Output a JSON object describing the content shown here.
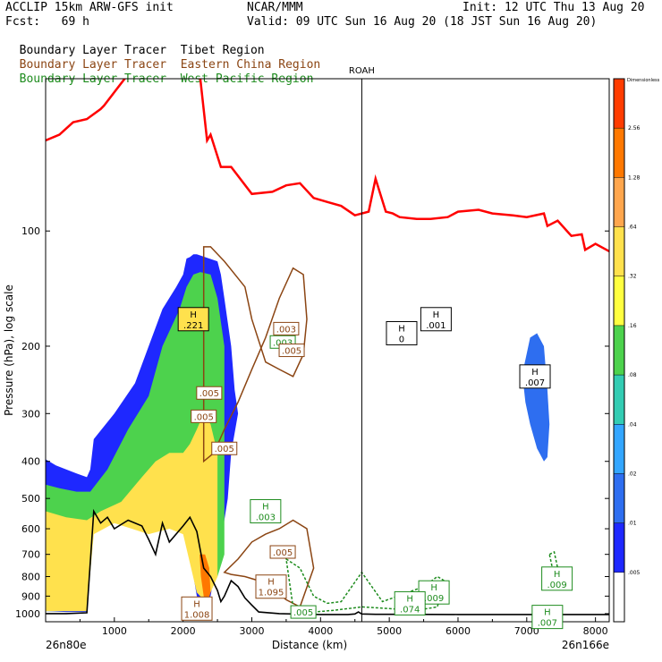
{
  "header": {
    "model": "ACCLIP 15km ARW-GFS init",
    "center": "NCAR/MMM",
    "init": "Init: 12 UTC Thu 13 Aug 20",
    "fcst": "Fcst:   69 h",
    "valid": "Valid: 09 UTC Sun 16 Aug 20 (18 JST Sun 16 Aug 20)",
    "tracers": [
      {
        "label": "Boundary Layer Tracer",
        "region": "Tibet Region",
        "color": "#000000"
      },
      {
        "label": "Boundary Layer Tracer",
        "region": "Eastern China Region",
        "color": "#8b4513"
      },
      {
        "label": "Boundary Layer Tracer",
        "region": "West Pacific Region",
        "color": "#1e8c1e"
      }
    ]
  },
  "chart_data": {
    "type": "cross-section",
    "xlabel": "Distance (km)",
    "ylabel": "Pressure (hPa), log scale",
    "xlim": [
      0,
      8200
    ],
    "ylim": [
      1050,
      40
    ],
    "x_ticks": [
      1000,
      2000,
      3000,
      4000,
      5000,
      6000,
      7000,
      8000
    ],
    "x_tick_labels": [
      "1000",
      "2000",
      "3000",
      "4000",
      "5000",
      "6000",
      "7000",
      "8000"
    ],
    "y_ticks": [
      100,
      200,
      300,
      400,
      500,
      600,
      700,
      800,
      900,
      1000
    ],
    "y_tick_labels": [
      "100",
      "200",
      "300",
      "400",
      "500",
      "600",
      "700",
      "800",
      "900",
      "1000"
    ],
    "endpoint_left": "26n80e",
    "endpoint_right": "26n166e",
    "marker": {
      "x": 4600,
      "label": "ROAH"
    },
    "colorbar": {
      "title": "Dimensionless",
      "levels": [
        "2.56",
        "1.28",
        ".64",
        ".32",
        ".16",
        ".08",
        ".04",
        ".02",
        ".01",
        ".005"
      ],
      "colors": [
        "#ff3c00",
        "#ff7800",
        "#ffa64d",
        "#ffe14d",
        "#ffff40",
        "#4dd24d",
        "#33ccb3",
        "#33a6ff",
        "#2e6ef0",
        "#1e28ff",
        "#ffffff"
      ]
    },
    "tropopause": {
      "color": "#ff0000",
      "x": [
        0,
        200,
        400,
        600,
        800,
        850,
        1150,
        1500,
        1700,
        1950,
        2150,
        2250,
        2350,
        2400,
        2550,
        2700,
        3000,
        3300,
        3500,
        3700,
        3900,
        4100,
        4300,
        4500,
        4700,
        4800,
        4950,
        5050,
        5150,
        5400,
        5600,
        5850,
        6000,
        6300,
        6500,
        6800,
        7000,
        7250,
        7300,
        7450,
        7650,
        7800,
        7850,
        8000,
        8200
      ],
      "p": [
        58,
        56,
        52,
        51,
        48,
        47,
        40,
        36,
        36,
        37,
        38,
        40,
        58,
        56,
        68,
        68,
        80,
        79,
        76,
        75,
        82,
        84,
        86,
        91,
        89,
        73,
        89,
        90,
        92,
        93,
        93,
        92,
        89,
        88,
        90,
        91,
        92,
        90,
        97,
        94,
        103,
        102,
        112,
        108,
        113
      ]
    },
    "terrain": {
      "color": "#000000",
      "x": [
        0,
        300,
        600,
        700,
        800,
        900,
        1000,
        1200,
        1400,
        1500,
        1600,
        1700,
        1800,
        2000,
        2100,
        2200,
        2300,
        2400,
        2500,
        2550,
        2600,
        2700,
        2800,
        2900,
        3000,
        3100,
        3400,
        3700,
        4000,
        4400,
        4500,
        4550,
        4600,
        4800,
        5200,
        6000,
        7000,
        8200
      ],
      "p": [
        1000,
        1000,
        995,
        540,
        580,
        560,
        600,
        570,
        590,
        640,
        700,
        580,
        650,
        590,
        560,
        610,
        760,
        800,
        870,
        930,
        900,
        820,
        850,
        910,
        950,
        990,
        1000,
        1003,
        1005,
        1005,
        1002,
        990,
        1002,
        1004,
        1004,
        1005,
        1005,
        1005
      ]
    },
    "fill_regions": [
      {
        "name": "west-fill-outer",
        "level": ".01",
        "x": [
          0,
          150,
          300,
          450,
          600,
          650,
          700,
          1000,
          1300,
          1500,
          1700,
          1900,
          2000,
          2050,
          2100,
          2150,
          2200,
          2500,
          2550,
          2600,
          2700,
          2750,
          2800,
          2700,
          2650,
          2550,
          2450,
          2400,
          2300,
          2200,
          2100,
          2000,
          1800,
          1500,
          1000,
          700,
          600,
          300,
          0
        ],
        "p": [
          395,
          410,
          420,
          430,
          440,
          420,
          350,
          300,
          250,
          200,
          160,
          140,
          130,
          118,
          117,
          115,
          115,
          120,
          130,
          150,
          200,
          260,
          300,
          380,
          500,
          650,
          800,
          900,
          950,
          900,
          700,
          600,
          580,
          600,
          560,
          600,
          990,
          990,
          985
        ]
      },
      {
        "name": "west-fill-green",
        "level": ".16",
        "x": [
          0,
          200,
          450,
          650,
          900,
          1200,
          1500,
          1700,
          1950,
          2050,
          2150,
          2250,
          2400,
          2500,
          2600,
          2600,
          2500,
          2400,
          2300,
          2200,
          2100,
          2000,
          1800,
          1500,
          1000,
          700,
          600,
          300,
          0
        ],
        "p": [
          460,
          470,
          480,
          480,
          420,
          330,
          270,
          200,
          160,
          140,
          130,
          128,
          130,
          150,
          200,
          700,
          800,
          870,
          920,
          880,
          700,
          610,
          590,
          610,
          570,
          610,
          985,
          985,
          985
        ]
      },
      {
        "name": "west-fill-orange",
        "level": ".64",
        "x": [
          0,
          300,
          600,
          800,
          1100,
          1400,
          1600,
          1800,
          2000,
          2100,
          2200,
          2300,
          2400,
          2500,
          2500,
          2400,
          2300,
          2200,
          2000,
          1800,
          1500,
          1000,
          700,
          600,
          300,
          0
        ],
        "p": [
          540,
          560,
          570,
          540,
          510,
          440,
          400,
          380,
          380,
          360,
          330,
          300,
          320,
          380,
          800,
          880,
          920,
          880,
          620,
          600,
          620,
          580,
          620,
          985,
          985,
          985
        ]
      },
      {
        "name": "west-fill-red",
        "level": "2.56",
        "x": [
          2240,
          2320,
          2380,
          2400,
          2360,
          2300,
          2260
        ],
        "p": [
          700,
          700,
          760,
          880,
          930,
          900,
          800
        ]
      },
      {
        "name": "pacific-blob",
        "level": ".02",
        "x": [
          6950,
          7050,
          7150,
          7250,
          7300,
          7330,
          7300,
          7250,
          7150,
          7050,
          6980,
          6950
        ],
        "p": [
          230,
          190,
          185,
          200,
          260,
          320,
          390,
          400,
          370,
          320,
          280,
          250
        ]
      }
    ],
    "contour_regions": [
      {
        "name": "eastern-china-upper",
        "x": [
          2300,
          2400,
          2600,
          2900,
          3000,
          3200,
          3400,
          3600,
          3750,
          3800,
          3750,
          3600,
          3400,
          3200,
          3000,
          2800,
          2600,
          2450,
          2300
        ],
        "p": [
          110,
          110,
          120,
          140,
          170,
          220,
          230,
          240,
          210,
          170,
          130,
          125,
          150,
          190,
          230,
          280,
          330,
          380,
          400
        ]
      },
      {
        "name": "eastern-china-lower",
        "x": [
          2600,
          2800,
          3000,
          3200,
          3400,
          3600,
          3800,
          3900,
          3700,
          3500,
          3300,
          3100,
          2900,
          2700
        ],
        "p": [
          780,
          720,
          650,
          620,
          600,
          570,
          600,
          760,
          960,
          920,
          860,
          820,
          800,
          790
        ]
      },
      {
        "name": "west-pacific-low",
        "x": [
          3500,
          3700,
          3900,
          4100,
          4300,
          4600,
          4900,
          5200,
          5500,
          5700,
          5800,
          5700,
          5400,
          5000,
          4600,
          4200,
          3900,
          3600
        ],
        "p": [
          720,
          760,
          900,
          940,
          930,
          780,
          930,
          890,
          850,
          800,
          820,
          960,
          980,
          970,
          960,
          980,
          990,
          960
        ]
      },
      {
        "name": "west-pacific-east",
        "x": [
          7330,
          7400,
          7450,
          7380
        ],
        "p": [
          700,
          690,
          760,
          770
        ]
      }
    ],
    "annotations": [
      {
        "text": [
          "H",
          ".221"
        ],
        "x": 2150,
        "p": 170,
        "color": "#000000",
        "bg": "#ffe14d"
      },
      {
        "text": [
          "H",
          "0"
        ],
        "x": 5180,
        "p": 185,
        "color": "#000000",
        "bg": "#ffffff"
      },
      {
        "text": [
          "H",
          ".001"
        ],
        "x": 5680,
        "p": 170,
        "color": "#000000",
        "bg": "#ffffff"
      },
      {
        "text": [
          "H",
          ".003"
        ],
        "x": 3200,
        "p": 540,
        "color": "#1e8c1e",
        "bg": "#ffffff"
      },
      {
        "text": [
          "H",
          ".007"
        ],
        "x": 7120,
        "p": 240,
        "color": "#000000",
        "bg": "#ffffff"
      },
      {
        "text": [
          "H",
          "1.095"
        ],
        "x": 3280,
        "p": 850,
        "color": "#8b4513",
        "bg": "#ffffff"
      },
      {
        "text": [
          "H",
          "1.008"
        ],
        "x": 2200,
        "p": 970,
        "color": "#8b4513",
        "bg": "#ffffff"
      },
      {
        "text": [
          "H",
          ".009"
        ],
        "x": 7440,
        "p": 810,
        "color": "#1e8c1e",
        "bg": "#ffffff"
      },
      {
        "text": [
          "H",
          ".009"
        ],
        "x": 5650,
        "p": 880,
        "color": "#1e8c1e",
        "bg": "#ffffff"
      },
      {
        "text": [
          "H",
          ".074"
        ],
        "x": 5300,
        "p": 940,
        "color": "#1e8c1e",
        "bg": "#ffffff"
      },
      {
        "text": [
          "H",
          ".007"
        ],
        "x": 7300,
        "p": 1020,
        "color": "#1e8c1e",
        "bg": "#ffffff"
      }
    ],
    "contour_labels": [
      {
        "text": ".003",
        "x": 3450,
        "p": 195,
        "color": "#1e8c1e"
      },
      {
        "text": ".005",
        "x": 3580,
        "p": 205,
        "color": "#8b4513"
      },
      {
        "text": ".003",
        "x": 3500,
        "p": 180,
        "color": "#8b4513"
      },
      {
        "text": ".005",
        "x": 2380,
        "p": 265,
        "color": "#8b4513"
      },
      {
        "text": ".005",
        "x": 2300,
        "p": 305,
        "color": "#8b4513"
      },
      {
        "text": ".005",
        "x": 2600,
        "p": 370,
        "color": "#8b4513"
      },
      {
        "text": ".005",
        "x": 3450,
        "p": 690,
        "color": "#8b4513"
      },
      {
        "text": ".005",
        "x": 3750,
        "p": 990,
        "color": "#1e8c1e"
      }
    ]
  }
}
